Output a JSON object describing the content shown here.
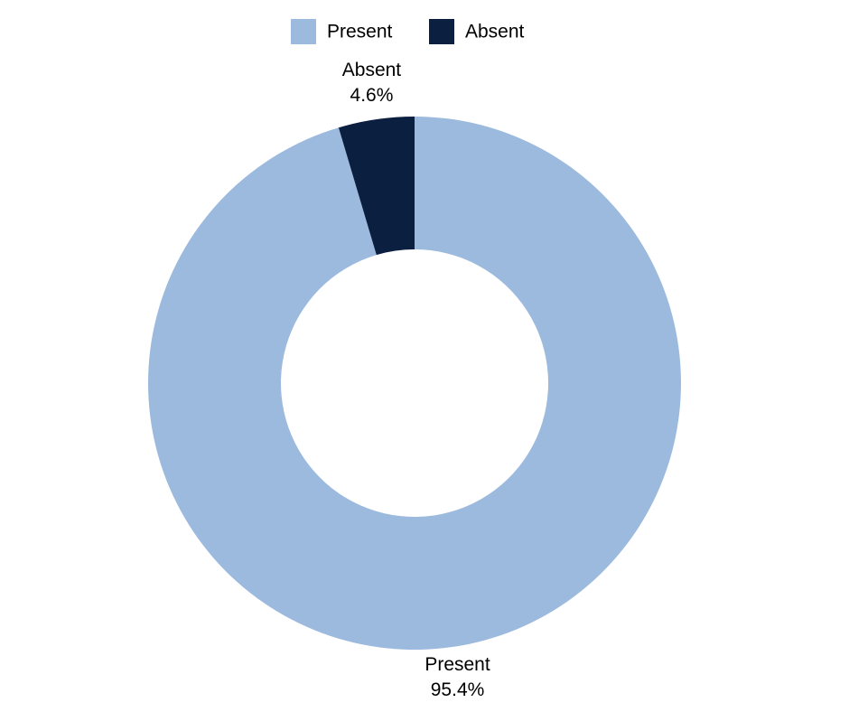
{
  "chart_data": {
    "type": "donut",
    "categories": [
      "Present",
      "Absent"
    ],
    "values": [
      95.4,
      4.6
    ],
    "value_labels": [
      "95.4%",
      "4.6%"
    ],
    "colors": [
      "#9cbade",
      "#0b1f40"
    ],
    "legend": "top"
  }
}
